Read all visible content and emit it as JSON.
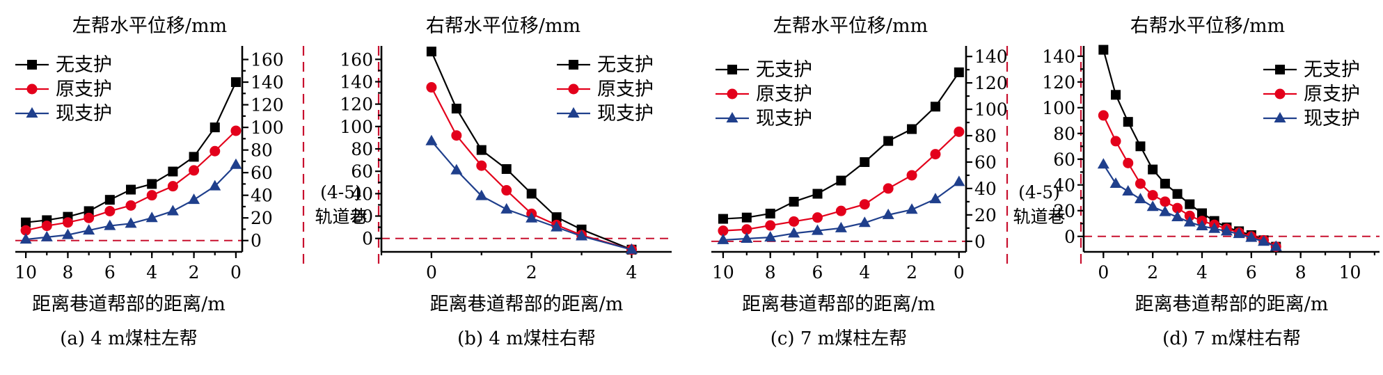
{
  "colors": {
    "none": "#000000",
    "orig": "#e3001b",
    "curr": "#1f3f8c",
    "zero_line": "#c8102e"
  },
  "series_names": [
    "无支护",
    "原支护",
    "现支护"
  ],
  "roadway_label": {
    "line1": "(4-5)",
    "line2": "轨道巷"
  },
  "chart_data": [
    {
      "type": "line",
      "title": "左帮水平位移/mm",
      "xlabel": "距离巷道帮部的距离/m",
      "caption": "(a) 4 m煤柱左帮",
      "xlim": [
        10.5,
        -0.3
      ],
      "ylim": [
        -10,
        172
      ],
      "xticks": [
        10,
        8,
        6,
        4,
        2,
        0
      ],
      "yticks": [
        0,
        20,
        40,
        60,
        80,
        100,
        120,
        140,
        160
      ],
      "x_reversed": true,
      "y_axis_side": "right",
      "legend": "top-left",
      "x": [
        10,
        9,
        8,
        7,
        6,
        5,
        4,
        3,
        2,
        1,
        0
      ],
      "series": [
        {
          "name": "无支护",
          "marker": "square",
          "values": [
            16,
            18,
            21,
            26,
            36,
            45,
            50,
            61,
            74,
            100,
            140
          ]
        },
        {
          "name": "原支护",
          "marker": "circle",
          "values": [
            9,
            13,
            16,
            20,
            26,
            31,
            40,
            48,
            62,
            79,
            97
          ]
        },
        {
          "name": "现支护",
          "marker": "triangle",
          "values": [
            1,
            3,
            5,
            9,
            13,
            15,
            20,
            26,
            36,
            48,
            67
          ]
        }
      ]
    },
    {
      "type": "line",
      "title": "右帮水平位移/mm",
      "xlabel": "距离巷道帮部的距离/m",
      "caption": "(b) 4 m煤柱右帮",
      "xlim": [
        -1,
        4.8
      ],
      "ylim": [
        -12,
        172
      ],
      "xticks": [
        0,
        2,
        4
      ],
      "yticks": [
        0,
        20,
        40,
        60,
        80,
        100,
        120,
        140,
        160
      ],
      "x_reversed": false,
      "y_axis_side": "left",
      "legend": "top-right",
      "x": [
        0,
        0.5,
        1,
        1.5,
        2,
        2.5,
        3,
        4
      ],
      "series": [
        {
          "name": "无支护",
          "marker": "square",
          "values": [
            167,
            116,
            79,
            62,
            40,
            19,
            8,
            -10
          ]
        },
        {
          "name": "原支护",
          "marker": "circle",
          "values": [
            135,
            92,
            65,
            43,
            22,
            12,
            3,
            -10
          ]
        },
        {
          "name": "现支护",
          "marker": "triangle",
          "values": [
            87,
            61,
            38,
            26,
            18,
            10,
            2,
            -10
          ]
        }
      ]
    },
    {
      "type": "line",
      "title": "左帮水平位移/mm",
      "xlabel": "距离巷道帮部的距离/m",
      "caption": "(c) 7 m煤柱左帮",
      "xlim": [
        10.5,
        -0.3
      ],
      "ylim": [
        -8,
        148
      ],
      "xticks": [
        10,
        8,
        6,
        4,
        2,
        0
      ],
      "yticks": [
        0,
        20,
        40,
        60,
        80,
        100,
        120,
        140
      ],
      "x_reversed": true,
      "y_axis_side": "right",
      "legend": "top-left",
      "x": [
        10,
        9,
        8,
        7,
        6,
        5,
        4,
        3,
        2,
        1,
        0
      ],
      "series": [
        {
          "name": "无支护",
          "marker": "square",
          "values": [
            17,
            18,
            21,
            30,
            36,
            46,
            60,
            76,
            85,
            102,
            128
          ]
        },
        {
          "name": "原支护",
          "marker": "circle",
          "values": [
            8,
            9,
            12,
            15,
            18,
            23,
            28,
            40,
            50,
            66,
            83
          ]
        },
        {
          "name": "现支护",
          "marker": "triangle",
          "values": [
            1,
            2,
            3,
            6,
            8,
            10,
            14,
            20,
            24,
            32,
            45
          ]
        }
      ]
    },
    {
      "type": "line",
      "title": "右帮水平位移/mm",
      "xlabel": "距离巷道帮部的距离/m",
      "caption": "(d) 7 m煤柱右帮",
      "xlim": [
        -0.8,
        11.2
      ],
      "ylim": [
        -12,
        148
      ],
      "xticks": [
        0,
        2,
        4,
        6,
        8,
        10
      ],
      "yticks": [
        0,
        20,
        40,
        60,
        80,
        100,
        120,
        140
      ],
      "x_reversed": false,
      "y_axis_side": "left",
      "legend": "top-right",
      "x": [
        0,
        0.5,
        1,
        1.5,
        2,
        2.5,
        3,
        3.5,
        4,
        4.5,
        5,
        5.5,
        6,
        6.5,
        7
      ],
      "series": [
        {
          "name": "无支护",
          "marker": "square",
          "values": [
            145,
            110,
            89,
            70,
            52,
            41,
            33,
            25,
            18,
            12,
            7,
            4,
            1,
            -3,
            -8
          ]
        },
        {
          "name": "原支护",
          "marker": "circle",
          "values": [
            94,
            74,
            57,
            41,
            32,
            27,
            22,
            16,
            12,
            9,
            6,
            3,
            0,
            -3,
            -8
          ]
        },
        {
          "name": "现支护",
          "marker": "triangle",
          "values": [
            56,
            41,
            35,
            29,
            23,
            19,
            15,
            11,
            8,
            6,
            4,
            2,
            -1,
            -4,
            -8
          ]
        }
      ]
    }
  ]
}
